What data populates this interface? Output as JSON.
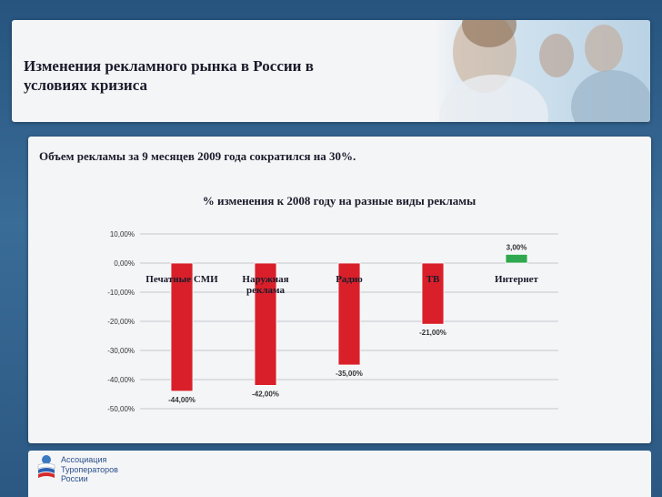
{
  "header": {
    "title_line1": "Изменения рекламного рынка в России в",
    "title_line2": "условиях кризиса"
  },
  "subtitle": "Объем рекламы за 9 месяцев 2009 года сократился на 30%.",
  "chart_data": {
    "type": "bar",
    "title": "% изменения к 2008 году на разные виды рекламы",
    "categories": [
      "Печатные СМИ",
      "Наружная реклама",
      "Радио",
      "ТВ",
      "Интернет"
    ],
    "category_lines": [
      [
        "Печатные СМИ"
      ],
      [
        "Наружная",
        "реклама"
      ],
      [
        "Радио"
      ],
      [
        "ТВ"
      ],
      [
        "Интернет"
      ]
    ],
    "values": [
      -44,
      -42,
      -35,
      -21,
      3
    ],
    "value_labels": [
      "-44,00%",
      "-42,00%",
      "-35,00%",
      "-21,00%",
      "3,00%"
    ],
    "bar_colors": [
      "#d9202a",
      "#d9202a",
      "#d9202a",
      "#d9202a",
      "#2fa84f"
    ],
    "ylim": [
      -50,
      10
    ],
    "yticks": [
      10,
      0,
      -10,
      -20,
      -30,
      -40,
      -50
    ],
    "ytick_labels": [
      "10,00%",
      "0,00%",
      "-10,00%",
      "-20,00%",
      "-30,00%",
      "-40,00%",
      "-50,00%"
    ],
    "grid": true,
    "xlabel": "",
    "ylabel": ""
  },
  "footer": {
    "line1": "Ассоциация",
    "line2": "Туроператоров",
    "line3": "России"
  }
}
